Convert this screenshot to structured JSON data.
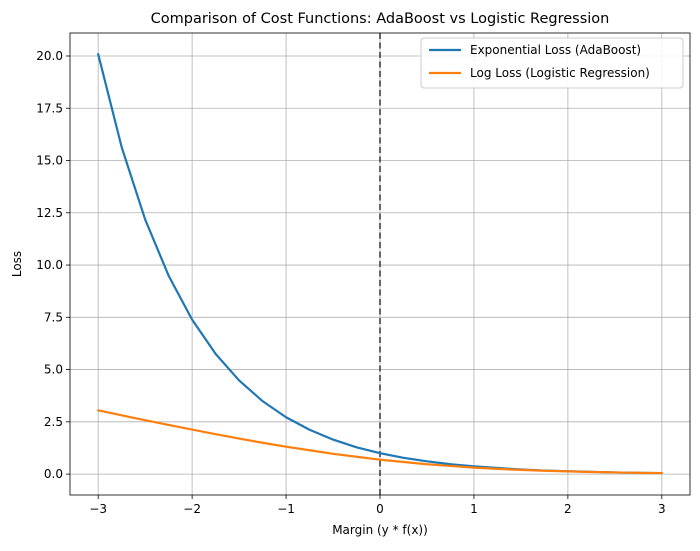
{
  "chart_data": {
    "type": "line",
    "title": "Comparison of Cost Functions: AdaBoost vs Logistic Regression",
    "xlabel": "Margin (y * f(x))",
    "ylabel": "Loss",
    "xlim": [
      -3.3,
      3.3
    ],
    "ylim": [
      -1.0,
      21.1
    ],
    "xticks": [
      -3,
      -2,
      -1,
      0,
      1,
      2,
      3
    ],
    "xtick_labels": [
      "−3",
      "−2",
      "−1",
      "0",
      "1",
      "2",
      "3"
    ],
    "yticks": [
      0,
      2.5,
      5,
      7.5,
      10,
      12.5,
      15,
      17.5,
      20
    ],
    "ytick_labels": [
      "0.0",
      "2.5",
      "5.0",
      "7.5",
      "10.0",
      "12.5",
      "15.0",
      "17.5",
      "20.0"
    ],
    "grid": true,
    "legend_position": "top-right",
    "reference_line": {
      "x": 0,
      "style": "dashed",
      "color": "#333333"
    },
    "series": [
      {
        "name": "Exponential Loss (AdaBoost)",
        "color": "#1f77b4",
        "x": [
          -3,
          -2.75,
          -2.5,
          -2.25,
          -2,
          -1.75,
          -1.5,
          -1.25,
          -1,
          -0.75,
          -0.5,
          -0.25,
          0,
          0.25,
          0.5,
          0.75,
          1,
          1.25,
          1.5,
          1.75,
          2,
          2.25,
          2.5,
          2.75,
          3
        ],
        "y": [
          20.09,
          15.64,
          12.18,
          9.49,
          7.39,
          5.75,
          4.48,
          3.49,
          2.72,
          2.12,
          1.65,
          1.28,
          1.0,
          0.78,
          0.61,
          0.47,
          0.37,
          0.29,
          0.22,
          0.17,
          0.14,
          0.11,
          0.08,
          0.06,
          0.05
        ]
      },
      {
        "name": "Log Loss (Logistic Regression)",
        "color": "#ff7f0e",
        "x": [
          -3,
          -2.75,
          -2.5,
          -2.25,
          -2,
          -1.75,
          -1.5,
          -1.25,
          -1,
          -0.75,
          -0.5,
          -0.25,
          0,
          0.25,
          0.5,
          0.75,
          1,
          1.25,
          1.5,
          1.75,
          2,
          2.25,
          2.5,
          2.75,
          3
        ],
        "y": [
          3.05,
          2.81,
          2.58,
          2.35,
          2.13,
          1.91,
          1.7,
          1.5,
          1.31,
          1.14,
          0.97,
          0.83,
          0.69,
          0.58,
          0.47,
          0.39,
          0.31,
          0.25,
          0.2,
          0.16,
          0.13,
          0.1,
          0.08,
          0.06,
          0.05
        ]
      }
    ]
  }
}
